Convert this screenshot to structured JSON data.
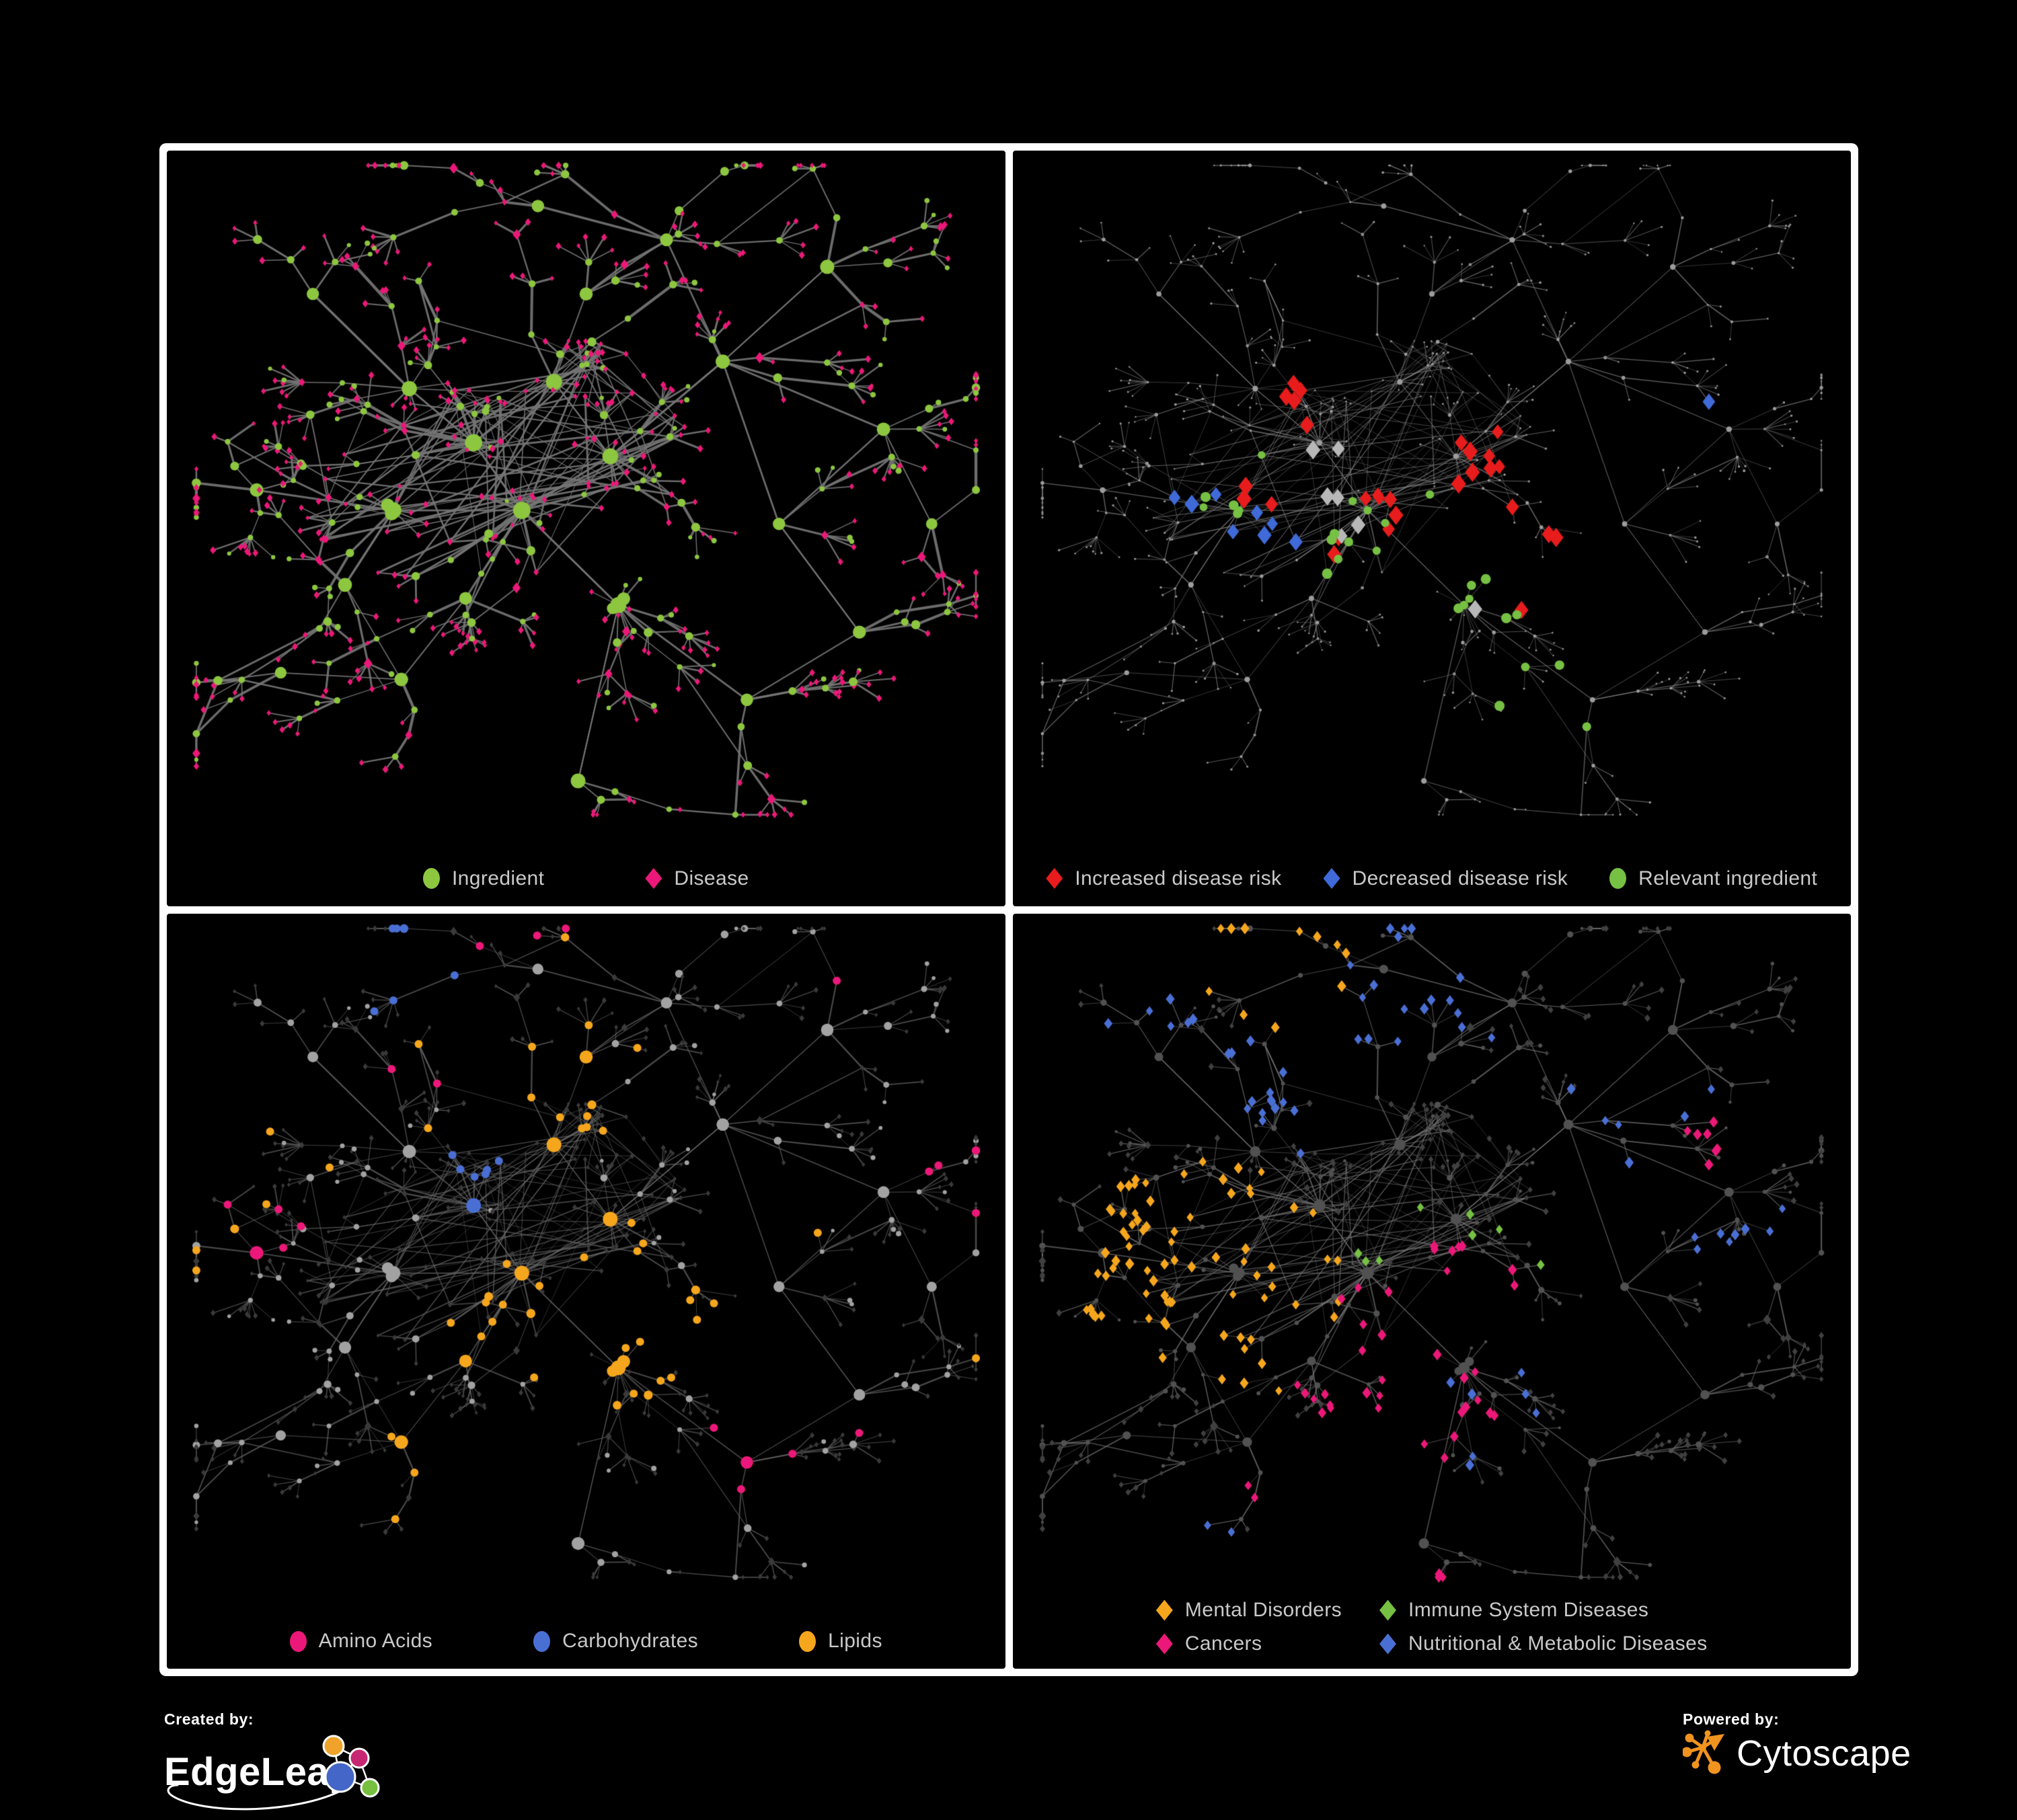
{
  "page": {
    "background": "#000000",
    "frame_border": "#ffffff"
  },
  "panels": [
    {
      "name": "ingredient-disease-network",
      "legend": [
        {
          "label": "Ingredient",
          "shape": "circle",
          "color": "#8dc63f"
        },
        {
          "label": "Disease",
          "shape": "diamond",
          "color": "#ec1879"
        }
      ]
    },
    {
      "name": "disease-risk-network",
      "legend": [
        {
          "label": "Increased disease risk",
          "shape": "diamond",
          "color": "#e81c1c"
        },
        {
          "label": "Decreased disease risk",
          "shape": "diamond",
          "color": "#3f6ad8"
        },
        {
          "label": "Relevant ingredient",
          "shape": "circle",
          "color": "#76c043"
        }
      ]
    },
    {
      "name": "nutrient-class-network",
      "legend": [
        {
          "label": "Amino Acids",
          "shape": "circle",
          "color": "#ec1879"
        },
        {
          "label": "Carbohydrates",
          "shape": "circle",
          "color": "#4a6fd4"
        },
        {
          "label": "Lipids",
          "shape": "circle",
          "color": "#f5a61d"
        }
      ]
    },
    {
      "name": "disease-class-network",
      "legend": [
        {
          "label": "Mental Disorders",
          "shape": "diamond",
          "color": "#f5a61d"
        },
        {
          "label": "Immune System Diseases",
          "shape": "diamond",
          "color": "#76c043"
        },
        {
          "label": "Cancers",
          "shape": "diamond",
          "color": "#ec1879"
        },
        {
          "label": "Nutritional & Metabolic Diseases",
          "shape": "diamond",
          "color": "#4a6fd4"
        }
      ]
    }
  ],
  "footer": {
    "created_by": "Created by:",
    "edgeleap": "EdgeLeap",
    "powered_by": "Powered by:",
    "cytoscape": "Cytoscape"
  },
  "logo_colors": {
    "edgeleap_orange": "#f0a32b",
    "edgeleap_magenta": "#c72672",
    "edgeleap_blue": "#4466c8",
    "edgeleap_green": "#76bf3f",
    "cytoscape_orange": "#f0931f"
  },
  "network_render": {
    "anchors": [
      [
        0.36,
        0.42,
        3
      ],
      [
        0.46,
        0.33,
        2.6
      ],
      [
        0.42,
        0.52,
        2.4
      ],
      [
        0.53,
        0.44,
        2
      ],
      [
        0.28,
        0.34,
        2
      ],
      [
        0.26,
        0.52,
        2.4
      ],
      [
        0.54,
        0.66,
        2.2
      ],
      [
        0.2,
        0.63,
        1.4
      ],
      [
        0.67,
        0.3,
        1.5
      ],
      [
        0.8,
        0.16,
        1.5
      ],
      [
        0.87,
        0.4,
        1.1
      ],
      [
        0.74,
        0.54,
        1.2
      ],
      [
        0.6,
        0.12,
        1.1
      ],
      [
        0.44,
        0.07,
        1.0
      ],
      [
        0.16,
        0.2,
        1.1
      ],
      [
        0.09,
        0.49,
        1.0
      ],
      [
        0.27,
        0.77,
        1.3
      ],
      [
        0.49,
        0.92,
        1.3
      ],
      [
        0.84,
        0.7,
        1.0
      ],
      [
        0.93,
        0.54,
        0.9
      ],
      [
        0.12,
        0.76,
        0.9
      ],
      [
        0.7,
        0.8,
        1.2
      ],
      [
        0.5,
        0.2,
        1.2
      ],
      [
        0.35,
        0.65,
        1.2
      ]
    ],
    "core_anchor_ids": [
      0,
      1,
      2,
      3,
      5
    ],
    "blobs": [
      5,
      6
    ],
    "extra_links": [
      [
        0,
        1
      ],
      [
        1,
        3
      ],
      [
        2,
        3
      ],
      [
        0,
        2
      ],
      [
        2,
        5
      ],
      [
        2,
        6
      ],
      [
        3,
        8
      ],
      [
        8,
        9
      ],
      [
        1,
        22
      ],
      [
        4,
        14
      ],
      [
        5,
        7
      ],
      [
        6,
        17
      ],
      [
        11,
        18
      ],
      [
        8,
        11
      ],
      [
        6,
        21
      ],
      [
        0,
        4
      ],
      [
        2,
        23
      ]
    ],
    "panels": [
      {
        "ingredient": {
          "color": "#8dc63f",
          "sizeMul": 1,
          "shape": "circle"
        },
        "disease": {
          "color": "#ec1879",
          "sizeMul": 1.05,
          "shape": "diamond"
        },
        "edge": {
          "color": "#757575",
          "alpha": 0.92,
          "widthMul": 1.5
        },
        "highlights": []
      },
      {
        "ingredient": {
          "color": "#9c9c9c",
          "sizeMul": 0.42,
          "maxSize": 4.2,
          "shape": "circle"
        },
        "disease": {
          "color": "#8f8f8f",
          "sizeMul": 0.38,
          "maxSize": 3.4,
          "shape": "circle"
        },
        "edge": {
          "color": "#828282",
          "alpha": 0.72,
          "widthMul": 0.6
        },
        "highlights": [
          {
            "target": "dis",
            "shape": "diamond",
            "color": "#e81c1c",
            "size": 10.5,
            "count": 28,
            "regions": [
              [
                0.45,
                0.55,
                0.1
              ],
              [
                0.3,
                0.49,
                0.07
              ],
              [
                0.62,
                0.6,
                0.1
              ],
              [
                0.72,
                0.82,
                0.06
              ],
              [
                0.32,
                0.37,
                0.05
              ],
              [
                0.57,
                0.44,
                0.06
              ]
            ]
          },
          {
            "target": "dis",
            "shape": "diamond",
            "color": "#3f6ad8",
            "size": 10,
            "count": 9,
            "regions": [
              [
                0.25,
                0.51,
                0.05
              ],
              [
                0.84,
                0.39,
                0.035
              ],
              [
                0.28,
                0.56,
                0.04
              ]
            ]
          },
          {
            "target": "dis",
            "shape": "diamond",
            "color": "#b8b8b8",
            "size": 10,
            "count": 7,
            "regions": [
              [
                0.34,
                0.52,
                0.12
              ],
              [
                0.55,
                0.62,
                0.08
              ]
            ]
          },
          {
            "target": "ing",
            "shape": "circle",
            "color": "#76c043",
            "size": 6.5,
            "count": 27,
            "regions": [
              [
                0.27,
                0.51,
                0.08
              ],
              [
                0.44,
                0.53,
                0.09
              ],
              [
                0.62,
                0.8,
                0.06
              ],
              [
                0.79,
                0.4,
                0.03
              ],
              [
                0.51,
                0.87,
                0.035
              ],
              [
                0.57,
                0.63,
                0.05
              ]
            ]
          }
        ]
      },
      {
        "ingredient": {
          "color": "#a2a2a2",
          "sizeMul": 0.88,
          "shape": "circle"
        },
        "disease": {
          "color": "#3a3a3a",
          "sizeMul": 0.85,
          "shape": "diamond"
        },
        "edge": {
          "color": "#6a6a6a",
          "alpha": 0.7,
          "widthMul": 0.85
        },
        "highlights": [
          {
            "target": "ing",
            "shape": "circle",
            "color": "#f5a61d",
            "size": 0,
            "count": 58,
            "scatter": 0.1,
            "regions": [
              [
                0.49,
                0.47,
                0.07
              ],
              [
                0.4,
                0.57,
                0.08
              ],
              [
                0.44,
                0.22,
                0.09
              ],
              [
                0.56,
                0.68,
                0.05
              ],
              [
                0.65,
                0.6,
                0.07
              ],
              [
                0.27,
                0.77,
                0.045
              ]
            ]
          },
          {
            "target": "ing",
            "shape": "circle",
            "color": "#4a6fd4",
            "size": 0,
            "count": 13,
            "regions": [
              [
                0.48,
                0.47,
                0.05
              ],
              [
                0.41,
                0.34,
                0.06
              ],
              [
                0.67,
                0.64,
                0.04
              ],
              [
                0.28,
                0.07,
                0.05
              ],
              [
                0.05,
                0.28,
                0.04
              ]
            ]
          },
          {
            "target": "ing",
            "shape": "circle",
            "color": "#ec1879",
            "size": 0,
            "count": 20,
            "scatter": 0.22,
            "regions": [
              [
                0.7,
                0.8,
                0.09
              ],
              [
                0.26,
                0.78,
                0.06
              ],
              [
                0.1,
                0.45,
                0.06
              ],
              [
                0.3,
                0.21,
                0.06
              ],
              [
                0.94,
                0.33,
                0.04
              ],
              [
                0.47,
                0.04,
                0.04
              ]
            ]
          }
        ]
      },
      {
        "ingredient": {
          "color": "#515151",
          "sizeMul": 0.7,
          "shape": "circle"
        },
        "disease": {
          "color": "#404040",
          "sizeMul": 1.0,
          "shape": "diamond"
        },
        "edge": {
          "color": "#787878",
          "alpha": 0.72,
          "widthMul": 0.7
        },
        "highlights": [
          {
            "target": "dis",
            "shape": "diamond",
            "color": "#f5a61d",
            "size": 6.3,
            "count": 88,
            "scatter": 0.05,
            "regions": [
              [
                0.21,
                0.52,
                0.11
              ],
              [
                0.28,
                0.59,
                0.07
              ],
              [
                0.31,
                0.07,
                0.06
              ],
              [
                0.16,
                0.44,
                0.06
              ]
            ]
          },
          {
            "target": "dis",
            "shape": "diamond",
            "color": "#ec1879",
            "size": 6.3,
            "count": 48,
            "scatter": 0.05,
            "regions": [
              [
                0.45,
                0.65,
                0.1
              ],
              [
                0.51,
                0.73,
                0.06
              ],
              [
                0.88,
                0.33,
                0.05
              ],
              [
                0.48,
                0.93,
                0.05
              ],
              [
                0.3,
                0.86,
                0.05
              ],
              [
                0.55,
                0.55,
                0.07
              ]
            ]
          },
          {
            "target": "dis",
            "shape": "diamond",
            "color": "#4a6fd4",
            "size": 6.3,
            "count": 62,
            "scatter": 0.07,
            "regions": [
              [
                0.56,
                0.72,
                0.07
              ],
              [
                0.78,
                0.32,
                0.11
              ],
              [
                0.45,
                0.12,
                0.11
              ],
              [
                0.3,
                0.25,
                0.08
              ],
              [
                0.86,
                0.45,
                0.07
              ],
              [
                0.15,
                0.16,
                0.06
              ],
              [
                0.25,
                0.92,
                0.05
              ],
              [
                0.7,
                0.63,
                0.06
              ]
            ]
          },
          {
            "target": "dis",
            "shape": "diamond",
            "color": "#76c043",
            "size": 6.3,
            "count": 8,
            "scatter": 0.3,
            "regions": [
              [
                0.52,
                0.55,
                0.2
              ],
              [
                0.65,
                0.85,
                0.1
              ]
            ]
          }
        ]
      }
    ]
  }
}
